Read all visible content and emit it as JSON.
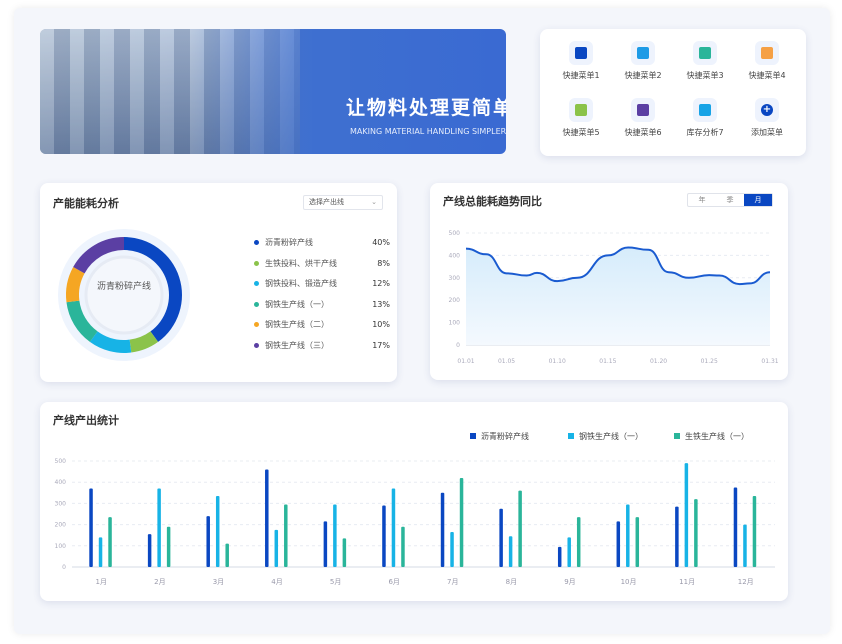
{
  "banner": {
    "title": "让物料处理更简单",
    "subtitle": "MAKING MATERIAL HANDLING SIMPLER"
  },
  "quick_menu": [
    {
      "label": "快捷菜单1",
      "icon": "document-icon",
      "color": "#0a47c2"
    },
    {
      "label": "快捷菜单2",
      "icon": "worker-icon",
      "color": "#1e9be6"
    },
    {
      "label": "快捷菜单3",
      "icon": "chart-clock-icon",
      "color": "#2ab59a"
    },
    {
      "label": "快捷菜单4",
      "icon": "window-search-icon",
      "color": "#f5a045"
    },
    {
      "label": "快捷菜单5",
      "icon": "gear-board-icon",
      "color": "#8bc34a"
    },
    {
      "label": "快捷菜单6",
      "icon": "folder-settings-icon",
      "color": "#5b3fa3"
    },
    {
      "label": "库存分析7",
      "icon": "box-icon",
      "color": "#17a3e6"
    },
    {
      "label": "添加菜单",
      "icon": "plus-icon",
      "color": "#0a47c2"
    }
  ],
  "energy": {
    "title": "产能能耗分析",
    "select": "选择产出线",
    "center_label": "沥青粉碎产线",
    "chart_data": {
      "type": "pie",
      "slices": [
        {
          "name": "沥青粉碎产线",
          "value": 40,
          "label": "40%",
          "color": "#0a47c2"
        },
        {
          "name": "生铁投料、烘干产线",
          "value": 8,
          "label": "8%",
          "color": "#8bc34a"
        },
        {
          "name": "钢铁投料、锻造产线",
          "value": 12,
          "label": "12%",
          "color": "#17b3e6"
        },
        {
          "name": "钢铁生产线（一）",
          "value": 13,
          "label": "13%",
          "color": "#2ab59a"
        },
        {
          "name": "钢铁生产线（二）",
          "value": 10,
          "label": "10%",
          "color": "#f5a623"
        },
        {
          "name": "钢铁生产线（三）",
          "value": 17,
          "label": "17%",
          "color": "#5b3fa3"
        }
      ]
    }
  },
  "trend": {
    "title": "产线总能耗趋势同比",
    "periods": [
      "年",
      "季",
      "月"
    ],
    "active": "月",
    "chart_data": {
      "type": "area",
      "ylim": [
        0,
        500
      ],
      "yticks": [
        0,
        100,
        200,
        300,
        400,
        500
      ],
      "xticks": [
        "01.01",
        "01.05",
        "01.10",
        "01.15",
        "01.20",
        "01.25",
        "01.31"
      ],
      "points": [
        [
          1,
          430
        ],
        [
          3,
          405
        ],
        [
          5,
          320
        ],
        [
          7,
          310
        ],
        [
          8,
          322
        ],
        [
          10,
          285
        ],
        [
          12,
          300
        ],
        [
          15,
          400
        ],
        [
          17,
          435
        ],
        [
          19,
          425
        ],
        [
          21,
          325
        ],
        [
          23,
          300
        ],
        [
          25,
          312
        ],
        [
          26,
          310
        ],
        [
          28,
          272
        ],
        [
          29,
          275
        ],
        [
          31,
          325
        ]
      ],
      "color": "#1a5bd0"
    }
  },
  "output": {
    "title": "产线产出统计",
    "chart_data": {
      "type": "bar",
      "ylim": [
        0,
        500
      ],
      "yticks": [
        0,
        100,
        200,
        300,
        400,
        500
      ],
      "categories": [
        "1月",
        "2月",
        "3月",
        "4月",
        "5月",
        "6月",
        "7月",
        "8月",
        "9月",
        "10月",
        "11月",
        "12月"
      ],
      "series": [
        {
          "name": "沥青粉碎产线",
          "color": "#0a47c2",
          "values": [
            370,
            155,
            240,
            460,
            215,
            290,
            350,
            275,
            95,
            215,
            285,
            375
          ]
        },
        {
          "name": "钢铁生产线（一）",
          "color": "#17b3e6",
          "values": [
            140,
            370,
            335,
            175,
            295,
            370,
            165,
            145,
            140,
            295,
            490,
            200
          ]
        },
        {
          "name": "生铁生产线（一）",
          "color": "#2ab59a",
          "values": [
            235,
            190,
            110,
            295,
            135,
            190,
            420,
            360,
            235,
            235,
            320,
            335
          ]
        }
      ]
    }
  }
}
